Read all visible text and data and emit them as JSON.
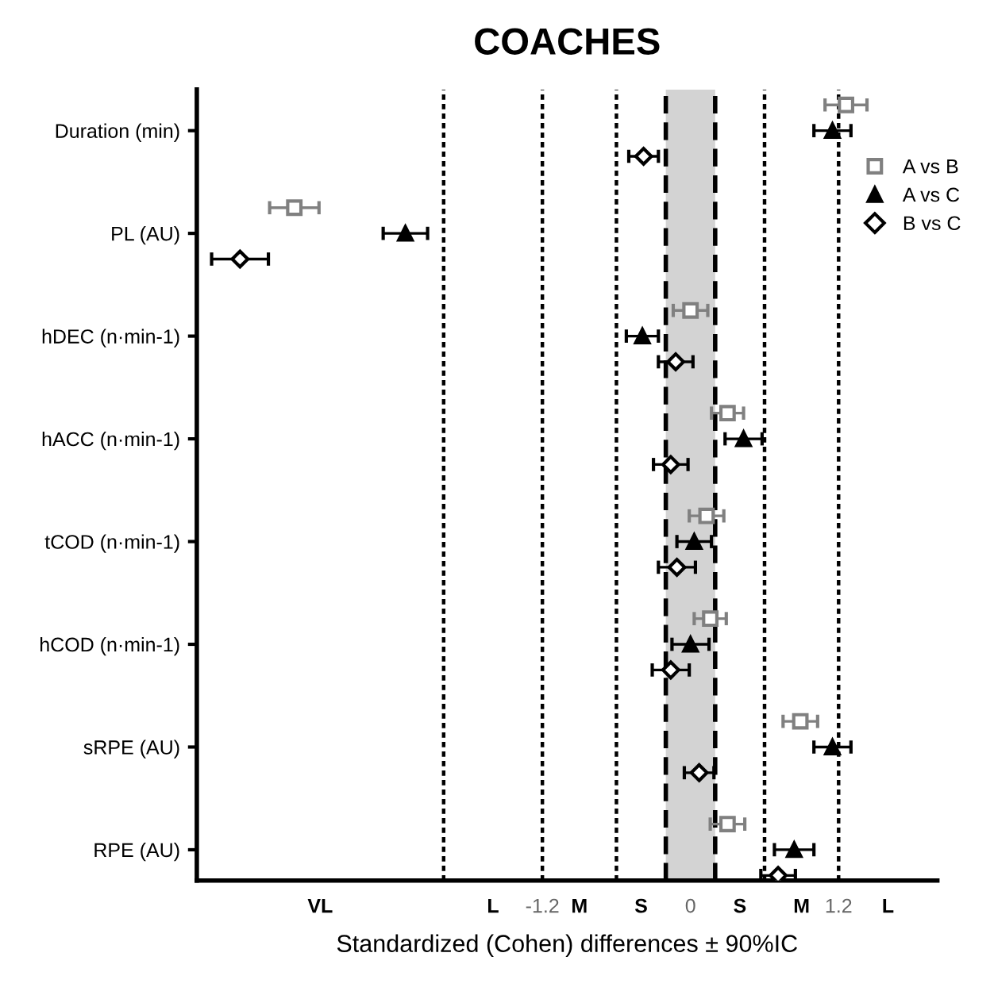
{
  "chart_data": {
    "type": "scatter",
    "orientation": "horizontal",
    "title": "COACHES",
    "xlabel": "Standardized (Cohen) differences ± 90%IC",
    "categories": [
      "Duration (min)",
      "PL (AU)",
      "hDEC (n·min-1)",
      "hACC (n·min-1)",
      "tCOD (n·min-1)",
      "hCOD (n·min-1)",
      "sRPE (AU)",
      "RPE (AU)"
    ],
    "series": [
      {
        "name": "A vs B",
        "color": "#808080",
        "marker": "square",
        "values": [
          1.26,
          -3.21,
          0.0,
          0.3,
          0.13,
          0.16,
          0.89,
          0.3
        ],
        "errors": [
          0.17,
          0.2,
          0.14,
          0.13,
          0.14,
          0.13,
          0.14,
          0.14
        ]
      },
      {
        "name": "A vs C",
        "color": "#000000",
        "marker": "triangle",
        "values": [
          1.15,
          -2.31,
          -0.39,
          0.43,
          0.03,
          0.0,
          1.15,
          0.84
        ],
        "errors": [
          0.15,
          0.18,
          0.13,
          0.15,
          0.14,
          0.15,
          0.15,
          0.16
        ]
      },
      {
        "name": "B vs C",
        "color": "#000000",
        "marker": "diamond",
        "values": [
          -0.38,
          -3.65,
          -0.12,
          -0.16,
          -0.11,
          -0.16,
          0.07,
          0.71
        ],
        "errors": [
          0.12,
          0.23,
          0.14,
          0.14,
          0.15,
          0.15,
          0.12,
          0.14
        ]
      }
    ],
    "xlim": [
      -4,
      2
    ],
    "xticks": [
      {
        "value": -3,
        "label": "VL"
      },
      {
        "value": -1.6,
        "label": "L"
      },
      -1.2,
      {
        "value": -0.9,
        "label": "M"
      },
      {
        "value": -0.4,
        "label": "S"
      },
      0,
      {
        "value": 0.4,
        "label": "S"
      },
      {
        "value": 0.9,
        "label": "M"
      },
      1.2,
      {
        "value": 1.6,
        "label": "L"
      }
    ],
    "ref_lines": [
      {
        "axis": "x",
        "value": -2,
        "line_style": "dotted",
        "color": "#000000"
      },
      {
        "axis": "x",
        "value": -1.2,
        "line_style": "dotted",
        "color": "#000000"
      },
      {
        "axis": "x",
        "value": -0.6,
        "line_style": "dotted",
        "color": "#000000"
      },
      {
        "axis": "x",
        "value": -0.2,
        "line_style": "dashed",
        "color": "#000000"
      },
      {
        "axis": "x",
        "value": 0.2,
        "line_style": "dashed",
        "color": "#000000"
      },
      {
        "axis": "x",
        "value": 0.6,
        "line_style": "dotted",
        "color": "#000000"
      },
      {
        "axis": "x",
        "value": 1.2,
        "line_style": "dotted",
        "color": "#000000"
      }
    ],
    "bands": [
      {
        "axis": "x",
        "from": -0.2,
        "to": 0.2,
        "color": "#d3d3d3"
      }
    ],
    "grid": false,
    "legend": "top right"
  }
}
